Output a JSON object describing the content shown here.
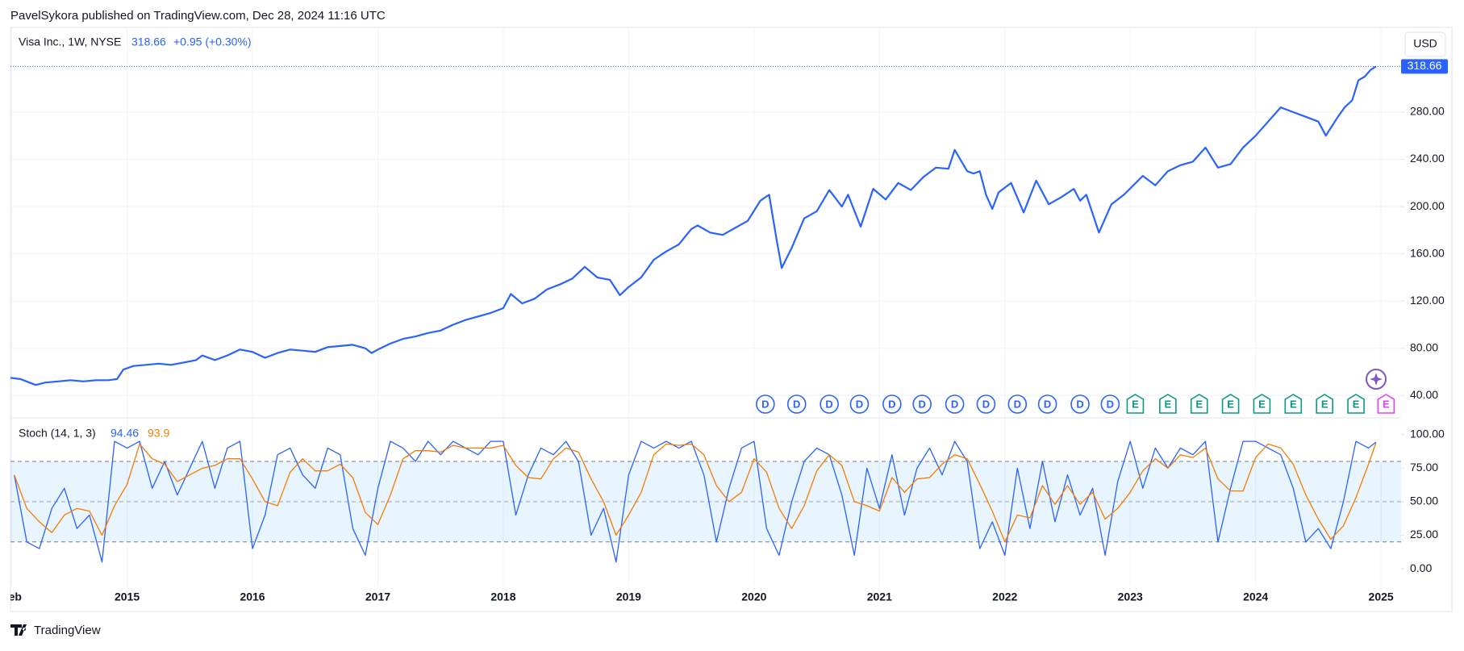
{
  "header": {
    "publisher": "PavelSykora published on TradingView.com, Dec 28, 2024 11:16 UTC",
    "brand": "TradingView"
  },
  "chart_data": [
    {
      "type": "line",
      "title": "Visa Inc., 1W, NYSE",
      "change": "+0.95 (+0.30%)",
      "currency": "USD",
      "color": "#2962ff",
      "x": [
        2014.07,
        2014.15,
        2014.22,
        2014.27,
        2014.35,
        2014.45,
        2014.55,
        2014.65,
        2014.75,
        2014.85,
        2014.92,
        2014.97,
        2015.05,
        2015.15,
        2015.25,
        2015.35,
        2015.45,
        2015.55,
        2015.6,
        2015.7,
        2015.8,
        2015.9,
        2016.0,
        2016.1,
        2016.2,
        2016.3,
        2016.4,
        2016.5,
        2016.6,
        2016.7,
        2016.8,
        2016.9,
        2016.95,
        2017.0,
        2017.1,
        2017.2,
        2017.3,
        2017.4,
        2017.5,
        2017.6,
        2017.7,
        2017.8,
        2017.9,
        2018.0,
        2018.06,
        2018.15,
        2018.25,
        2018.35,
        2018.45,
        2018.55,
        2018.65,
        2018.75,
        2018.85,
        2018.93,
        2019.0,
        2019.1,
        2019.2,
        2019.3,
        2019.4,
        2019.5,
        2019.55,
        2019.65,
        2019.75,
        2019.85,
        2019.95,
        2020.05,
        2020.12,
        2020.18,
        2020.22,
        2020.3,
        2020.4,
        2020.5,
        2020.6,
        2020.7,
        2020.75,
        2020.85,
        2020.95,
        2021.05,
        2021.15,
        2021.25,
        2021.35,
        2021.45,
        2021.55,
        2021.6,
        2021.7,
        2021.75,
        2021.8,
        2021.85,
        2021.9,
        2021.95,
        2022.05,
        2022.15,
        2022.25,
        2022.35,
        2022.45,
        2022.55,
        2022.6,
        2022.65,
        2022.75,
        2022.85,
        2022.95,
        2023.1,
        2023.2,
        2023.3,
        2023.4,
        2023.5,
        2023.6,
        2023.7,
        2023.8,
        2023.9,
        2024.0,
        2024.1,
        2024.2,
        2024.3,
        2024.4,
        2024.5,
        2024.56,
        2024.65,
        2024.71,
        2024.77,
        2024.82,
        2024.87,
        2024.92,
        2024.96
      ],
      "values": [
        55,
        54,
        51,
        49,
        51,
        52,
        53,
        52,
        53,
        53,
        54,
        62,
        65,
        66,
        67,
        66,
        68,
        70,
        74,
        70,
        74,
        79,
        77,
        72,
        76,
        79,
        78,
        77,
        81,
        82,
        83,
        80,
        76,
        79,
        84,
        88,
        90,
        93,
        95,
        100,
        104,
        107,
        110,
        114,
        126,
        118,
        122,
        130,
        134,
        139,
        149,
        140,
        138,
        125,
        132,
        140,
        155,
        162,
        168,
        181,
        184,
        178,
        176,
        182,
        188,
        205,
        210,
        172,
        148,
        165,
        190,
        196,
        214,
        200,
        210,
        183,
        215,
        206,
        220,
        214,
        225,
        233,
        232,
        248,
        230,
        228,
        230,
        210,
        198,
        212,
        220,
        195,
        222,
        202,
        208,
        215,
        205,
        210,
        178,
        202,
        210,
        226,
        218,
        230,
        235,
        238,
        250,
        233,
        236,
        250,
        260,
        272,
        284,
        280,
        276,
        272,
        260,
        275,
        284,
        290,
        307,
        310,
        316,
        318.66
      ],
      "xlim": [
        2014.07,
        2025.16
      ],
      "xticks": [
        {
          "value": 2014.08,
          "label": "Feb"
        },
        2015,
        2016,
        2017,
        2018,
        2019,
        2020,
        2021,
        2022,
        2023,
        2024,
        2025
      ],
      "ylim": [
        21.8,
        351
      ],
      "yticks": [
        {
          "value": 40,
          "label": "40.00"
        },
        {
          "value": 80,
          "label": "80.00"
        },
        {
          "value": 120,
          "label": "120.00"
        },
        {
          "value": 160,
          "label": "160.00"
        },
        {
          "value": 200,
          "label": "200.00"
        },
        {
          "value": 240,
          "label": "240.00"
        },
        {
          "value": 280,
          "label": "280.00"
        }
      ],
      "grid": true,
      "events": [
        {
          "x": 2020.09,
          "label": "D",
          "color": "#2962ff"
        },
        {
          "x": 2020.34,
          "label": "D",
          "color": "#2962ff"
        },
        {
          "x": 2020.6,
          "label": "D",
          "color": "#2962ff"
        },
        {
          "x": 2020.84,
          "label": "D",
          "color": "#2962ff"
        },
        {
          "x": 2021.1,
          "label": "D",
          "color": "#2962ff"
        },
        {
          "x": 2021.34,
          "label": "D",
          "color": "#2962ff"
        },
        {
          "x": 2021.6,
          "label": "D",
          "color": "#2962ff"
        },
        {
          "x": 2021.85,
          "label": "D",
          "color": "#2962ff"
        },
        {
          "x": 2022.1,
          "label": "D",
          "color": "#2962ff"
        },
        {
          "x": 2022.34,
          "label": "D",
          "color": "#2962ff"
        },
        {
          "x": 2022.6,
          "label": "D",
          "color": "#2962ff"
        },
        {
          "x": 2022.84,
          "label": "D",
          "color": "#2962ff"
        },
        {
          "x": 2023.04,
          "label": "E",
          "color": "#089981"
        },
        {
          "x": 2023.3,
          "label": "E",
          "color": "#089981"
        },
        {
          "x": 2023.55,
          "label": "E",
          "color": "#089981"
        },
        {
          "x": 2023.8,
          "label": "E",
          "color": "#089981"
        },
        {
          "x": 2024.05,
          "label": "E",
          "color": "#089981"
        },
        {
          "x": 2024.3,
          "label": "E",
          "color": "#089981"
        },
        {
          "x": 2024.55,
          "label": "E",
          "color": "#089981"
        },
        {
          "x": 2024.8,
          "label": "E",
          "color": "#089981"
        },
        {
          "x": 2025.04,
          "label": "E",
          "color": "#e040fb"
        }
      ]
    },
    {
      "type": "line",
      "title": "Stoch (14, 1, 3)",
      "x": [
        2014.1,
        2014.2,
        2014.3,
        2014.4,
        2014.5,
        2014.6,
        2014.7,
        2014.8,
        2014.9,
        2015.0,
        2015.1,
        2015.2,
        2015.3,
        2015.4,
        2015.5,
        2015.6,
        2015.7,
        2015.8,
        2015.9,
        2016.0,
        2016.1,
        2016.2,
        2016.3,
        2016.4,
        2016.5,
        2016.6,
        2016.7,
        2016.8,
        2016.9,
        2017.0,
        2017.1,
        2017.2,
        2017.3,
        2017.4,
        2017.5,
        2017.6,
        2017.7,
        2017.8,
        2017.9,
        2018.0,
        2018.1,
        2018.2,
        2018.3,
        2018.4,
        2018.5,
        2018.6,
        2018.7,
        2018.8,
        2018.9,
        2019.0,
        2019.1,
        2019.2,
        2019.3,
        2019.4,
        2019.5,
        2019.6,
        2019.7,
        2019.8,
        2019.9,
        2020.0,
        2020.1,
        2020.2,
        2020.3,
        2020.4,
        2020.5,
        2020.6,
        2020.7,
        2020.8,
        2020.9,
        2021.0,
        2021.1,
        2021.2,
        2021.3,
        2021.4,
        2021.5,
        2021.6,
        2021.7,
        2021.8,
        2021.9,
        2022.0,
        2022.1,
        2022.2,
        2022.3,
        2022.4,
        2022.5,
        2022.6,
        2022.7,
        2022.8,
        2022.9,
        2023.0,
        2023.1,
        2023.2,
        2023.3,
        2023.4,
        2023.5,
        2023.6,
        2023.7,
        2023.8,
        2023.9,
        2024.0,
        2024.1,
        2024.2,
        2024.3,
        2024.4,
        2024.5,
        2024.6,
        2024.7,
        2024.8,
        2024.9,
        2024.96
      ],
      "series": [
        {
          "color": "#2962ff",
          "values": [
            70,
            20,
            15,
            45,
            60,
            30,
            40,
            5,
            95,
            90,
            95,
            60,
            80,
            55,
            75,
            95,
            60,
            90,
            95,
            15,
            40,
            85,
            90,
            70,
            60,
            90,
            85,
            30,
            10,
            60,
            95,
            90,
            80,
            95,
            85,
            95,
            90,
            85,
            95,
            95,
            40,
            70,
            90,
            85,
            95,
            80,
            25,
            45,
            5,
            70,
            95,
            90,
            95,
            90,
            95,
            70,
            20,
            60,
            90,
            95,
            30,
            10,
            50,
            80,
            90,
            85,
            55,
            10,
            75,
            45,
            85,
            40,
            75,
            90,
            70,
            95,
            80,
            15,
            35,
            10,
            75,
            30,
            80,
            35,
            70,
            40,
            60,
            10,
            65,
            95,
            60,
            90,
            75,
            90,
            85,
            95,
            20,
            60,
            95,
            95,
            90,
            85,
            60,
            20,
            30,
            15,
            50,
            95,
            90,
            94.46
          ]
        },
        {
          "color": "#f57c00",
          "values": [
            70,
            45,
            35,
            27,
            40,
            45,
            43,
            25,
            47,
            63,
            93,
            82,
            78,
            65,
            70,
            75,
            77,
            82,
            82,
            67,
            50,
            47,
            72,
            82,
            73,
            73,
            78,
            68,
            42,
            33,
            55,
            82,
            88,
            88,
            87,
            92,
            90,
            90,
            90,
            92,
            77,
            68,
            67,
            82,
            90,
            87,
            67,
            50,
            25,
            40,
            57,
            85,
            93,
            92,
            93,
            85,
            62,
            50,
            57,
            82,
            72,
            45,
            30,
            47,
            73,
            85,
            77,
            50,
            47,
            43,
            68,
            57,
            67,
            68,
            78,
            85,
            82,
            63,
            43,
            20,
            40,
            38,
            62,
            48,
            62,
            48,
            57,
            37,
            45,
            57,
            73,
            82,
            75,
            85,
            83,
            90,
            67,
            58,
            58,
            83,
            93,
            90,
            78,
            55,
            37,
            22,
            32,
            53,
            78,
            93.9
          ]
        }
      ],
      "xlim": [
        2014.07,
        2025.16
      ],
      "ylim": [
        -12.6,
        111.9
      ],
      "yticks": [
        {
          "value": 0,
          "label": "0.00"
        },
        {
          "value": 25,
          "label": "25.00"
        },
        {
          "value": 50,
          "label": "50.00"
        },
        {
          "value": 75,
          "label": "75.00"
        },
        {
          "value": 100,
          "label": "100.00"
        }
      ],
      "upper_band": 80,
      "middle_band": 50,
      "lower_band": 20,
      "band_color": "#2196f3"
    }
  ]
}
